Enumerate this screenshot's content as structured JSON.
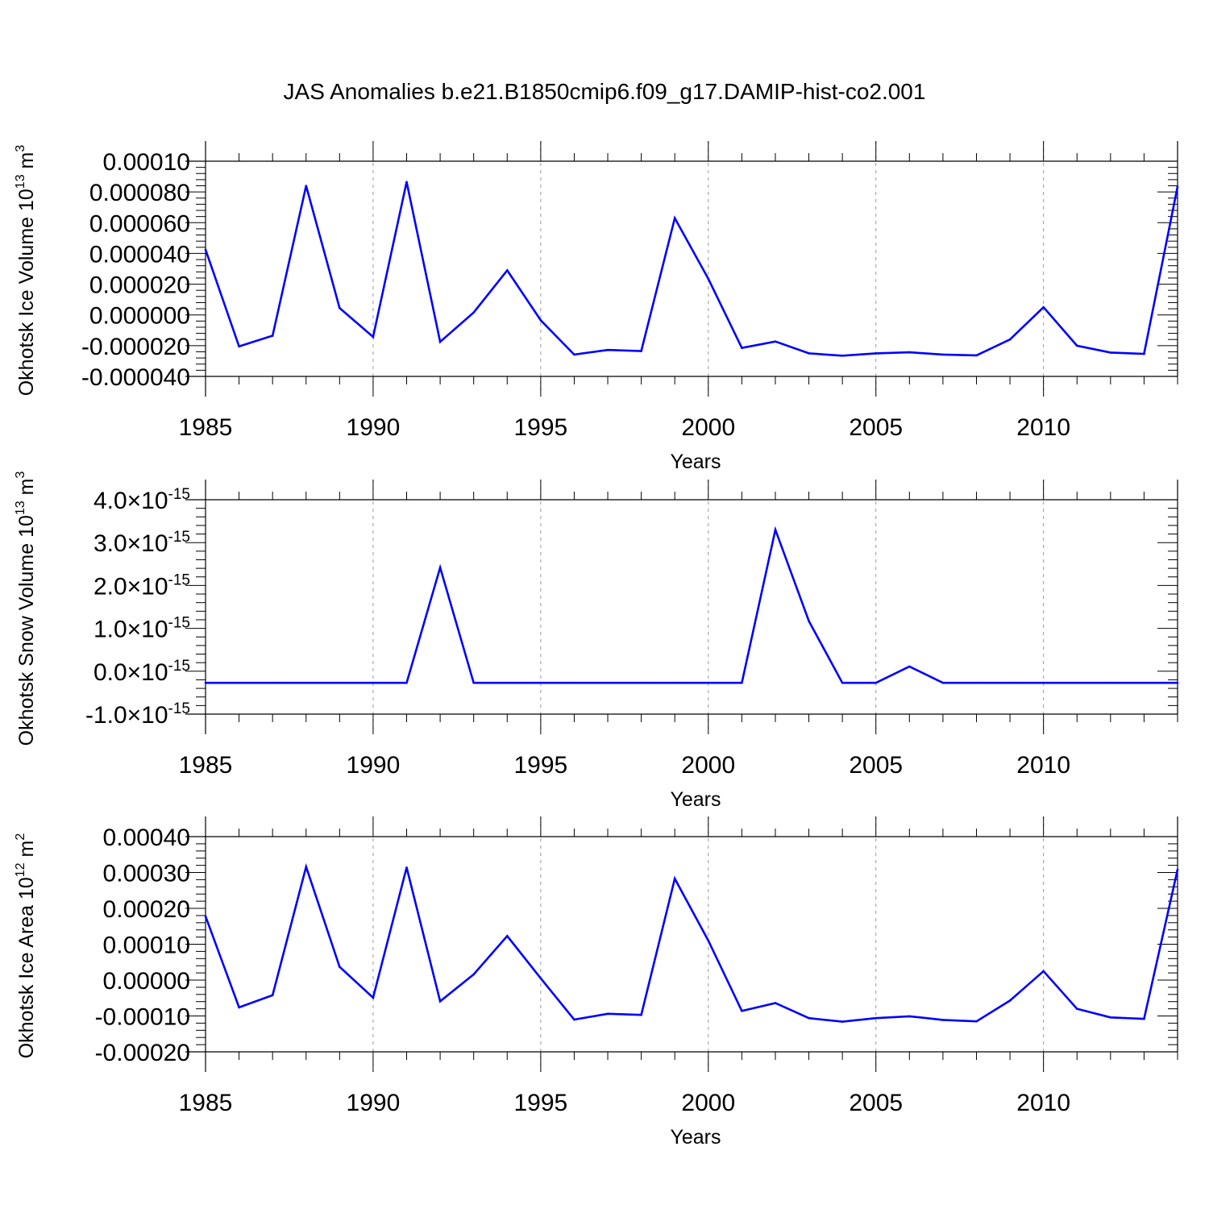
{
  "title": "JAS Anomalies b.e21.B1850cmip6.f09_g17.DAMIP-hist-co2.001",
  "colors": {
    "series": "#0000ff",
    "axis": "#000000",
    "grid": "#999999"
  },
  "chart_data": [
    {
      "type": "line",
      "ylabel": "Okhotsk Ice Volume 10",
      "ylabel_exp": "13",
      "ylabel_unit": "m",
      "ylabel_unit_exp": "3",
      "xlabel": "Years",
      "xlim": [
        1985,
        2014
      ],
      "ylim": [
        -4e-05,
        0.0001
      ],
      "xticks": [
        "1985",
        "1990",
        "1995",
        "2000",
        "2005",
        "2010"
      ],
      "yticks": [
        {
          "v": -4e-05,
          "label": "-0.000040"
        },
        {
          "v": -2e-05,
          "label": "-0.000020"
        },
        {
          "v": 0,
          "label": "0.000000"
        },
        {
          "v": 2e-05,
          "label": "0.000020"
        },
        {
          "v": 4e-05,
          "label": "0.000040"
        },
        {
          "v": 6e-05,
          "label": "0.000060"
        },
        {
          "v": 8e-05,
          "label": "0.000080"
        },
        {
          "v": 0.0001,
          "label": "0.00010"
        }
      ],
      "grid_vertical": true,
      "x": [
        1985,
        1986,
        1987,
        1988,
        1989,
        1990,
        1991,
        1992,
        1993,
        1994,
        1995,
        1996,
        1997,
        1998,
        1999,
        2000,
        2001,
        2002,
        2003,
        2004,
        2005,
        2006,
        2007,
        2008,
        2009,
        2010,
        2011,
        2012,
        2013,
        2014
      ],
      "y": [
        4.25e-05,
        -2.05e-05,
        -1.35e-05,
        8.4e-05,
        4.5e-06,
        -1.43e-05,
        8.65e-05,
        -1.75e-05,
        1.6e-06,
        2.9e-05,
        -3.5e-06,
        -2.58e-05,
        -2.28e-05,
        -2.35e-05,
        6.3e-05,
        2.35e-05,
        -2.15e-05,
        -1.73e-05,
        -2.5e-05,
        -2.65e-05,
        -2.5e-05,
        -2.43e-05,
        -2.58e-05,
        -2.63e-05,
        -1.6e-05,
        5e-06,
        -2e-05,
        -2.45e-05,
        -2.53e-05,
        8.35e-05
      ]
    },
    {
      "type": "line",
      "ylabel": "Okhotsk Snow Volume 10",
      "ylabel_exp": "13",
      "ylabel_unit": "m",
      "ylabel_unit_exp": "3",
      "xlabel": "Years",
      "xlim": [
        1985,
        2014
      ],
      "ylim": [
        -1e-15,
        4e-15
      ],
      "xticks": [
        "1985",
        "1990",
        "1995",
        "2000",
        "2005",
        "2010"
      ],
      "yticks": [
        {
          "v": -1e-15,
          "label": "-1.0×10",
          "exp": "-15"
        },
        {
          "v": 0,
          "label": "0.0×10",
          "exp": "-15"
        },
        {
          "v": 1e-15,
          "label": "1.0×10",
          "exp": "-15"
        },
        {
          "v": 2e-15,
          "label": "2.0×10",
          "exp": "-15"
        },
        {
          "v": 3e-15,
          "label": "3.0×10",
          "exp": "-15"
        },
        {
          "v": 4e-15,
          "label": "4.0×10",
          "exp": "-15"
        }
      ],
      "grid_vertical": true,
      "x": [
        1985,
        1986,
        1987,
        1988,
        1989,
        1990,
        1991,
        1992,
        1993,
        1994,
        1995,
        1996,
        1997,
        1998,
        1999,
        2000,
        2001,
        2002,
        2003,
        2004,
        2005,
        2006,
        2007,
        2008,
        2009,
        2010,
        2011,
        2012,
        2013,
        2014
      ],
      "y": [
        -2.7e-16,
        -2.7e-16,
        -2.7e-16,
        -2.7e-16,
        -2.7e-16,
        -2.7e-16,
        -2.7e-16,
        2.42e-15,
        -2.7e-16,
        -2.7e-16,
        -2.7e-16,
        -2.7e-16,
        -2.7e-16,
        -2.7e-16,
        -2.7e-16,
        -2.7e-16,
        -2.7e-16,
        3.3e-15,
        1.17e-15,
        -2.7e-16,
        -2.7e-16,
        1.1e-16,
        -2.7e-16,
        -2.7e-16,
        -2.7e-16,
        -2.7e-16,
        -2.7e-16,
        -2.7e-16,
        -2.7e-16,
        -2.7e-16
      ]
    },
    {
      "type": "line",
      "ylabel": "Okhotsk Ice Area 10",
      "ylabel_exp": "12",
      "ylabel_unit": "m",
      "ylabel_unit_exp": "2",
      "xlabel": "Years",
      "xlim": [
        1985,
        2014
      ],
      "ylim": [
        -0.0002,
        0.0004
      ],
      "xticks": [
        "1985",
        "1990",
        "1995",
        "2000",
        "2005",
        "2010"
      ],
      "yticks": [
        {
          "v": -0.0002,
          "label": "-0.00020"
        },
        {
          "v": -0.0001,
          "label": "-0.00010"
        },
        {
          "v": 0,
          "label": "0.00000"
        },
        {
          "v": 0.0001,
          "label": "0.00010"
        },
        {
          "v": 0.0002,
          "label": "0.00020"
        },
        {
          "v": 0.0003,
          "label": "0.00030"
        },
        {
          "v": 0.0004,
          "label": "0.00040"
        }
      ],
      "grid_vertical": true,
      "x": [
        1985,
        1986,
        1987,
        1988,
        1989,
        1990,
        1991,
        1992,
        1993,
        1994,
        1995,
        1996,
        1997,
        1998,
        1999,
        2000,
        2001,
        2002,
        2003,
        2004,
        2005,
        2006,
        2007,
        2008,
        2009,
        2010,
        2011,
        2012,
        2013,
        2014
      ],
      "y": [
        0.000178,
        -7.6e-05,
        -4.2e-05,
        0.000316,
        3.7e-05,
        -4.9e-05,
        0.000314,
        -5.9e-05,
        1.6e-05,
        0.000123,
        5e-06,
        -0.00011,
        -9.4e-05,
        -9.7e-05,
        0.000283,
        0.00011,
        -8.6e-05,
        -6.4e-05,
        -0.000106,
        -0.000116,
        -0.000106,
        -0.000101,
        -0.000111,
        -0.000115,
        -5.7e-05,
        2.5e-05,
        -8e-05,
        -0.000104,
        -0.000108,
        0.000308
      ]
    }
  ]
}
